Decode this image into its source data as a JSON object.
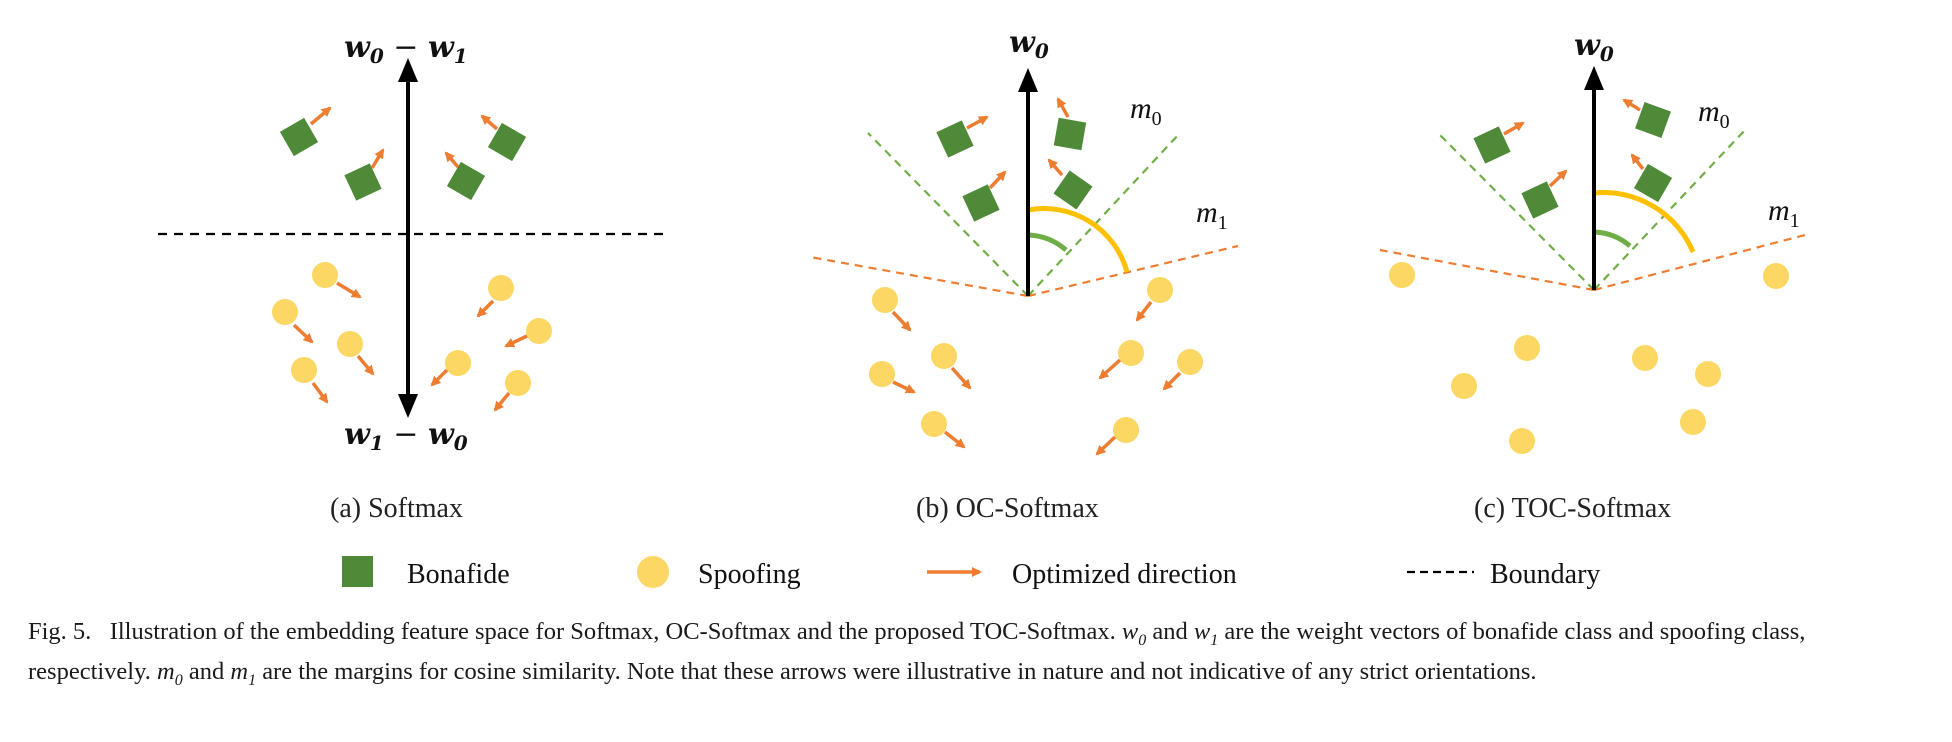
{
  "panels": [
    {
      "id": "a",
      "caption": "(a) Softmax",
      "top_vector": {
        "base": "w",
        "sub": "0",
        "op": " − ",
        "base2": "w",
        "sub2": "1"
      },
      "bottom_vector": {
        "base": "w",
        "sub": "1",
        "op": " − ",
        "base2": "w",
        "sub2": "0"
      }
    },
    {
      "id": "b",
      "caption": "(b) OC-Softmax",
      "top_vector": {
        "base": "w",
        "sub": "0"
      },
      "margins": [
        {
          "base": "m",
          "sub": "0"
        },
        {
          "base": "m",
          "sub": "1"
        }
      ]
    },
    {
      "id": "c",
      "caption": "(c) TOC-Softmax",
      "top_vector": {
        "base": "w",
        "sub": "0"
      },
      "margins": [
        {
          "base": "m",
          "sub": "0"
        },
        {
          "base": "m",
          "sub": "1"
        }
      ]
    }
  ],
  "legend": {
    "bonafide": "Bonafide",
    "spoofing": "Spoofing",
    "optimized": "Optimized direction",
    "boundary": "Boundary"
  },
  "colors": {
    "bonafide": "#4f8a38",
    "spoofing": "#fdd763",
    "arrow": "#ed7d31",
    "margin0_line": "#70ad47",
    "margin1_line": "#ed7d31",
    "arc_outer": "#ffc000",
    "arc_inner": "#70ad47",
    "vector": "#000000"
  },
  "caption": {
    "label": "Fig. 5.",
    "seg1": "Illustration of the embedding feature space for Softmax, OC-Softmax and the proposed TOC-Softmax.",
    "w0_base": "w",
    "w0_sub": "0",
    "and1": "and",
    "w1_base": "w",
    "w1_sub": "1",
    "seg2": "are the weight vectors of bonafide class and spoofing class, respectively.",
    "m0_base": "m",
    "m0_sub": "0",
    "and2": "and",
    "m1_base": "m",
    "m1_sub": "1",
    "seg3": "are the margins for cosine similarity. Note that these arrows were illustrative in nature and not indicative of any strict orientations."
  }
}
